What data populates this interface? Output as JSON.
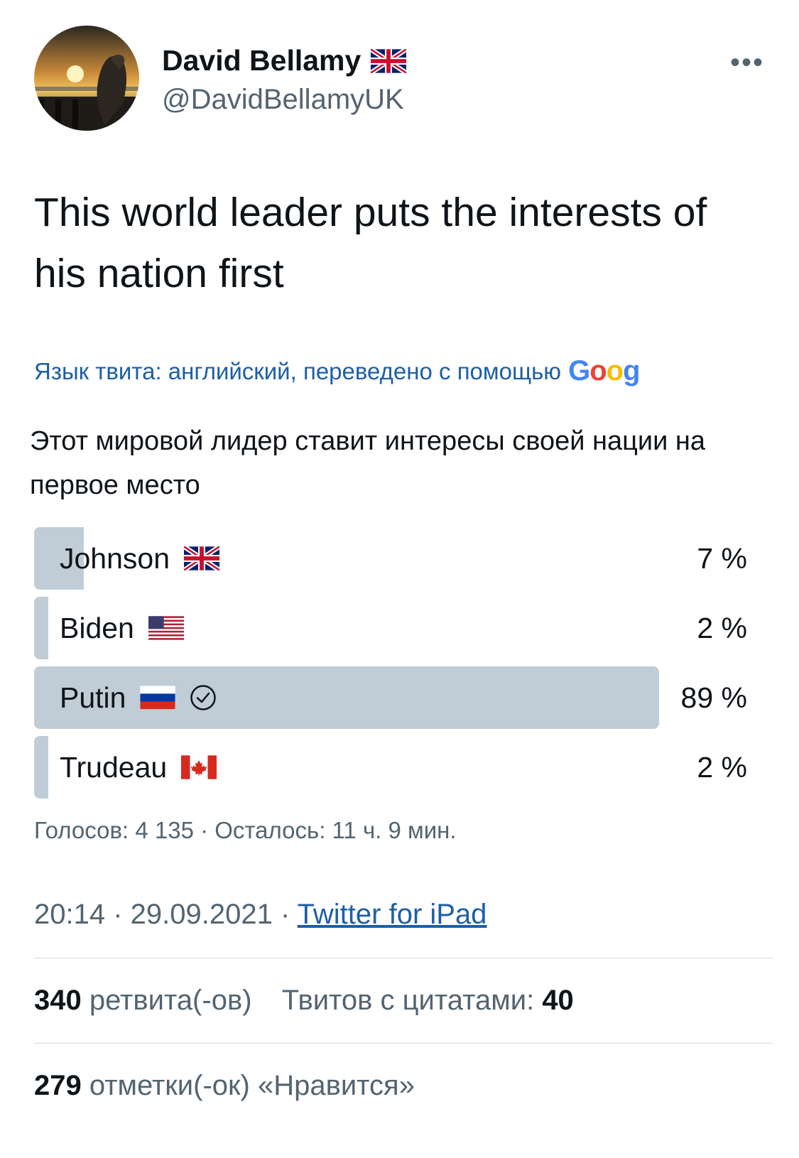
{
  "author": {
    "name": "David Bellamy",
    "handle": "@DavidBellamyUK",
    "flag_icon": "uk-flag-icon"
  },
  "more_label": "•••",
  "tweet": {
    "text": "This world leader puts the interests of his nation first"
  },
  "translation": {
    "note": "Язык твита: английский, переведено с помощью",
    "provider": "Goog",
    "text": "Этот мировой лидер ставит интересы своей нации на первое место"
  },
  "poll": {
    "options": [
      {
        "label": "Johnson",
        "percent": 7,
        "percent_label": "7 %",
        "flag_icon": "uk-flag-icon",
        "selected": false
      },
      {
        "label": "Biden",
        "percent": 2,
        "percent_label": "2 %",
        "flag_icon": "us-flag-icon",
        "selected": false
      },
      {
        "label": "Putin",
        "percent": 89,
        "percent_label": "89 %",
        "flag_icon": "russia-flag-icon",
        "selected": true
      },
      {
        "label": "Trudeau",
        "percent": 2,
        "percent_label": "2 %",
        "flag_icon": "canada-flag-icon",
        "selected": false
      }
    ],
    "info": "Голосов: 4 135 · Осталось: 11 ч. 9 мин.",
    "bar_color": "#c0ccd6"
  },
  "meta": {
    "time_date": "20:14 · 29.09.2021 · ",
    "source": "Twitter for iPad"
  },
  "stats": {
    "retweets_count": "340",
    "retweets_label": " ретвита(-ов)",
    "quotes_label": "Твитов с цитатами: ",
    "quotes_count": "40",
    "likes_count": "279",
    "likes_label": " отметки(-ок) «Нравится»"
  },
  "colors": {
    "link": "#1d5fa6",
    "secondary_text": "#536471",
    "primary_text": "#0f1419"
  }
}
